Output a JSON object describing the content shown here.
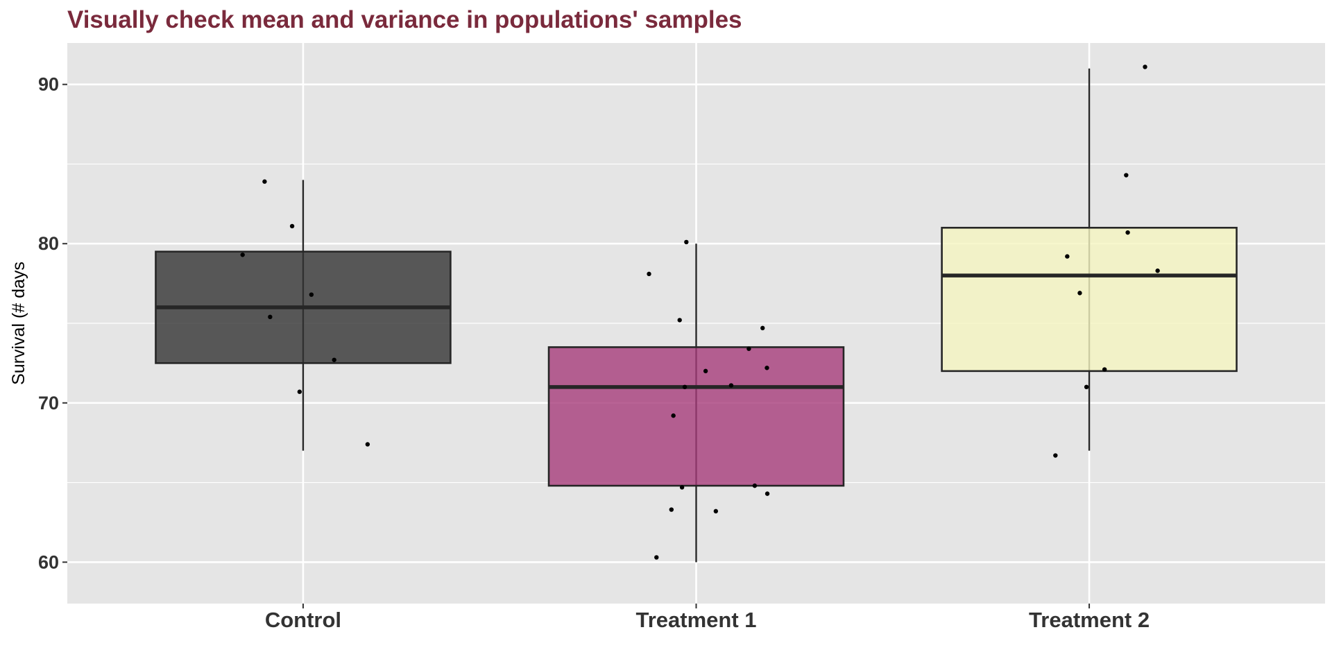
{
  "chart_data": {
    "type": "boxplot",
    "title": "Visually check mean and variance in populations' samples",
    "xlabel": "",
    "ylabel": "Survival (# days",
    "ylim": [
      57.4,
      92.6
    ],
    "yticks": [
      60,
      70,
      80,
      90
    ],
    "grid": true,
    "legend": "none",
    "categories": [
      "Control",
      "Treatment 1",
      "Treatment 2"
    ],
    "boxes": [
      {
        "min": 67,
        "q1": 72.5,
        "median": 76,
        "q3": 79.5,
        "max": 84,
        "color": "#333333"
      },
      {
        "min": 60,
        "q1": 64.8,
        "median": 71,
        "q3": 73.5,
        "max": 80,
        "color": "#A63C7A"
      },
      {
        "min": 67,
        "q1": 72,
        "median": 78,
        "q3": 81,
        "max": 91,
        "color": "#F5F5C0"
      }
    ],
    "points": [
      {
        "category": "Control",
        "offset": -0.154,
        "y": 79.3
      },
      {
        "category": "Control",
        "offset": -0.098,
        "y": 83.9
      },
      {
        "category": "Control",
        "offset": -0.084,
        "y": 75.4
      },
      {
        "category": "Control",
        "offset": -0.028,
        "y": 81.1
      },
      {
        "category": "Control",
        "offset": -0.009,
        "y": 70.7
      },
      {
        "category": "Control",
        "offset": 0.021,
        "y": 76.8
      },
      {
        "category": "Control",
        "offset": 0.079,
        "y": 72.7
      },
      {
        "category": "Control",
        "offset": 0.164,
        "y": 67.4
      },
      {
        "category": "Treatment 1",
        "offset": -0.12,
        "y": 78.1
      },
      {
        "category": "Treatment 1",
        "offset": -0.101,
        "y": 60.3
      },
      {
        "category": "Treatment 1",
        "offset": -0.063,
        "y": 63.3
      },
      {
        "category": "Treatment 1",
        "offset": -0.058,
        "y": 69.2
      },
      {
        "category": "Treatment 1",
        "offset": -0.042,
        "y": 75.2
      },
      {
        "category": "Treatment 1",
        "offset": -0.036,
        "y": 64.7
      },
      {
        "category": "Treatment 1",
        "offset": -0.029,
        "y": 71.0
      },
      {
        "category": "Treatment 1",
        "offset": -0.025,
        "y": 80.1
      },
      {
        "category": "Treatment 1",
        "offset": 0.024,
        "y": 72.0
      },
      {
        "category": "Treatment 1",
        "offset": 0.05,
        "y": 63.2
      },
      {
        "category": "Treatment 1",
        "offset": 0.089,
        "y": 71.1
      },
      {
        "category": "Treatment 1",
        "offset": 0.134,
        "y": 73.4
      },
      {
        "category": "Treatment 1",
        "offset": 0.149,
        "y": 64.8
      },
      {
        "category": "Treatment 1",
        "offset": 0.169,
        "y": 74.7
      },
      {
        "category": "Treatment 1",
        "offset": 0.18,
        "y": 72.2
      },
      {
        "category": "Treatment 1",
        "offset": 0.181,
        "y": 64.3
      },
      {
        "category": "Treatment 2",
        "offset": -0.086,
        "y": 66.7
      },
      {
        "category": "Treatment 2",
        "offset": -0.056,
        "y": 79.2
      },
      {
        "category": "Treatment 2",
        "offset": -0.024,
        "y": 76.9
      },
      {
        "category": "Treatment 2",
        "offset": -0.007,
        "y": 71.0
      },
      {
        "category": "Treatment 2",
        "offset": 0.039,
        "y": 72.1
      },
      {
        "category": "Treatment 2",
        "offset": 0.094,
        "y": 84.3
      },
      {
        "category": "Treatment 2",
        "offset": 0.098,
        "y": 80.7
      },
      {
        "category": "Treatment 2",
        "offset": 0.142,
        "y": 91.1
      },
      {
        "category": "Treatment 2",
        "offset": 0.174,
        "y": 78.3
      }
    ]
  },
  "colors": {
    "panel": "#E5E5E5",
    "grid": "#FFFFFF",
    "title": "#7A2A3C",
    "outline": "#262626",
    "point": "#000000"
  }
}
